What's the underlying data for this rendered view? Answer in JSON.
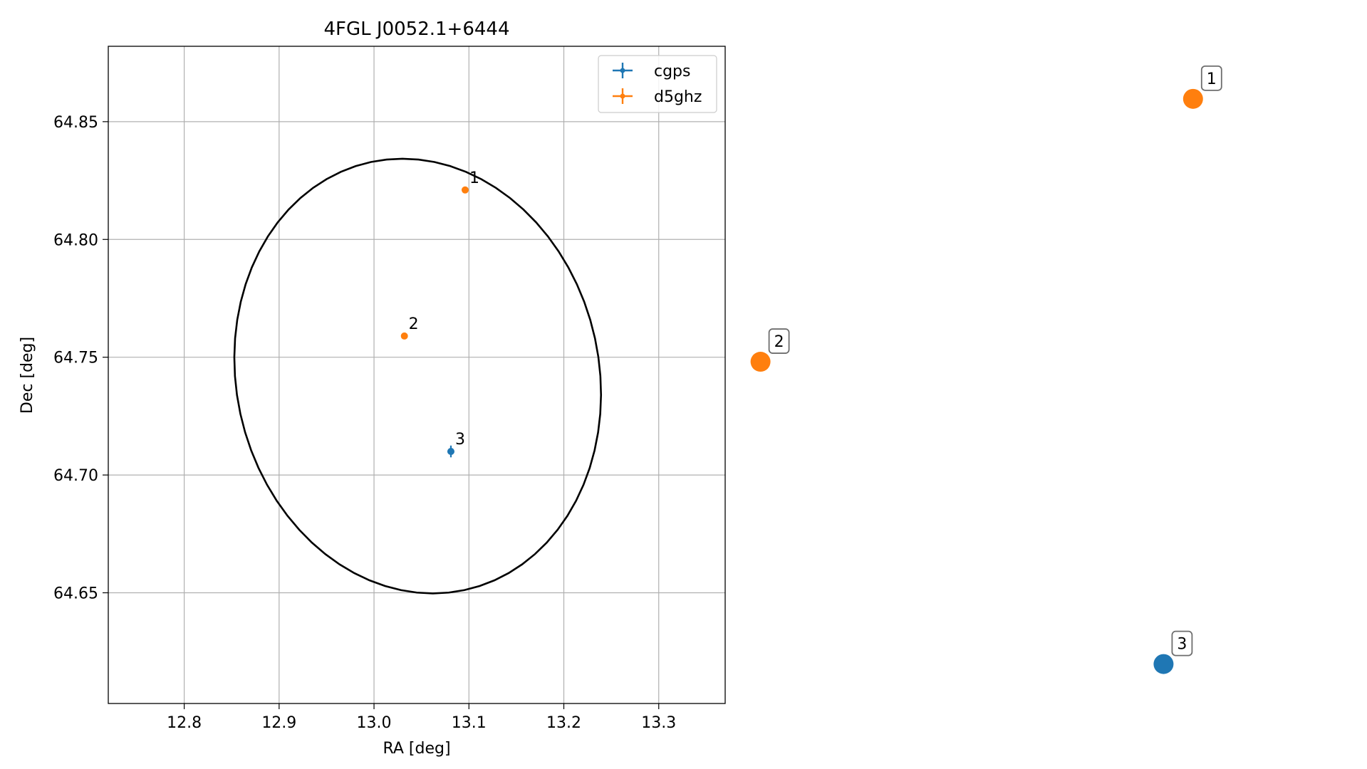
{
  "chart_data": [
    {
      "type": "scatter",
      "title": "4FGL J0052.1+6444",
      "xlabel": "RA [deg]",
      "ylabel": "Dec [deg]",
      "xlim": [
        12.72,
        13.37
      ],
      "ylim": [
        64.603,
        64.882
      ],
      "xticks": [
        12.8,
        12.9,
        13.0,
        13.1,
        13.2,
        13.3
      ],
      "xtick_labels": [
        "12.8",
        "12.9",
        "13.0",
        "13.1",
        "13.2",
        "13.3"
      ],
      "yticks": [
        64.65,
        64.7,
        64.75,
        64.8,
        64.85
      ],
      "ytick_labels": [
        "64.65",
        "64.70",
        "64.75",
        "64.80",
        "64.85"
      ],
      "grid": true,
      "legend_position": "upper right",
      "error_ellipse": {
        "center": [
          13.046,
          64.742
        ],
        "semi_axis_ra": 0.193,
        "semi_axis_dec": 0.0925,
        "rotation_deg": 4
      },
      "series": [
        {
          "name": "cgps",
          "color": "#1f77b4",
          "points": [
            {
              "label": "3",
              "x": 13.081,
              "y": 64.71,
              "xerr": 0.002,
              "yerr": 0.0025
            }
          ]
        },
        {
          "name": "d5ghz",
          "color": "#ff7f0e",
          "points": [
            {
              "label": "1",
              "x": 13.096,
              "y": 64.821,
              "xerr": 0.0,
              "yerr": 0.0
            },
            {
              "label": "2",
              "x": 13.032,
              "y": 64.759,
              "xerr": 0.0,
              "yerr": 0.0
            }
          ]
        }
      ]
    },
    {
      "type": "scatter",
      "title": "",
      "xlabel": "",
      "ylabel": "",
      "axes_visible": false,
      "xlim": [
        0,
        1
      ],
      "ylim": [
        0,
        1
      ],
      "series": [
        {
          "name": "",
          "color": "#ff7f0e",
          "points": [
            {
              "label": "1",
              "x": 0.92,
              "y": 0.92
            },
            {
              "label": "2",
              "x": 0.04,
              "y": 0.52
            }
          ]
        },
        {
          "name": "",
          "color": "#1f77b4",
          "points": [
            {
              "label": "3",
              "x": 0.86,
              "y": 0.06
            }
          ]
        }
      ]
    }
  ]
}
